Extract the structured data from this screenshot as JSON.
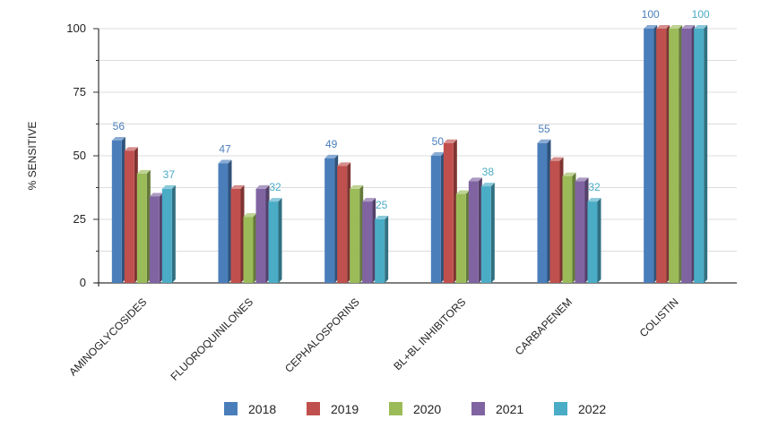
{
  "chart_data": {
    "type": "bar",
    "ylabel": "% SENSITIVE",
    "xlabel": "",
    "ylim": [
      0,
      100
    ],
    "yticks": [
      0,
      25,
      50,
      75,
      100
    ],
    "grid": true,
    "legend_position": "bottom",
    "categories": [
      "AMINOGLYCOSIDES",
      "FLUOROQUINILONES",
      "CEPHALOSPORINS",
      "BL+BL INHIBITORS",
      "CARBAPENEM",
      "COLISTIN"
    ],
    "series": [
      {
        "name": "2018",
        "color": "#4a7ebb",
        "values": [
          56,
          47,
          49,
          50,
          55,
          100
        ]
      },
      {
        "name": "2019",
        "color": "#c0504d",
        "values": [
          52,
          37,
          46,
          55,
          48,
          100
        ]
      },
      {
        "name": "2020",
        "color": "#9bbb59",
        "values": [
          43,
          26,
          37,
          35,
          42,
          100
        ]
      },
      {
        "name": "2021",
        "color": "#8064a2",
        "values": [
          34,
          37,
          32,
          40,
          40,
          100
        ]
      },
      {
        "name": "2022",
        "color": "#4bacc6",
        "values": [
          37,
          32,
          25,
          38,
          32,
          100
        ]
      }
    ],
    "data_labels": [
      {
        "category": "AMINOGLYCOSIDES",
        "series": "2018",
        "text": "56"
      },
      {
        "category": "AMINOGLYCOSIDES",
        "series": "2022",
        "text": "37"
      },
      {
        "category": "FLUOROQUINILONES",
        "series": "2018",
        "text": "47"
      },
      {
        "category": "FLUOROQUINILONES",
        "series": "2022",
        "text": "32"
      },
      {
        "category": "CEPHALOSPORINS",
        "series": "2018",
        "text": "49"
      },
      {
        "category": "CEPHALOSPORINS",
        "series": "2022",
        "text": "25"
      },
      {
        "category": "BL+BL INHIBITORS",
        "series": "2018",
        "text": "50"
      },
      {
        "category": "BL+BL INHIBITORS",
        "series": "2022",
        "text": "38"
      },
      {
        "category": "CARBAPENEM",
        "series": "2018",
        "text": "55"
      },
      {
        "category": "CARBAPENEM",
        "series": "2022",
        "text": "32"
      },
      {
        "category": "COLISTIN",
        "series": "2018",
        "text": "100"
      },
      {
        "category": "COLISTIN",
        "series": "2022",
        "text": "100"
      }
    ]
  }
}
